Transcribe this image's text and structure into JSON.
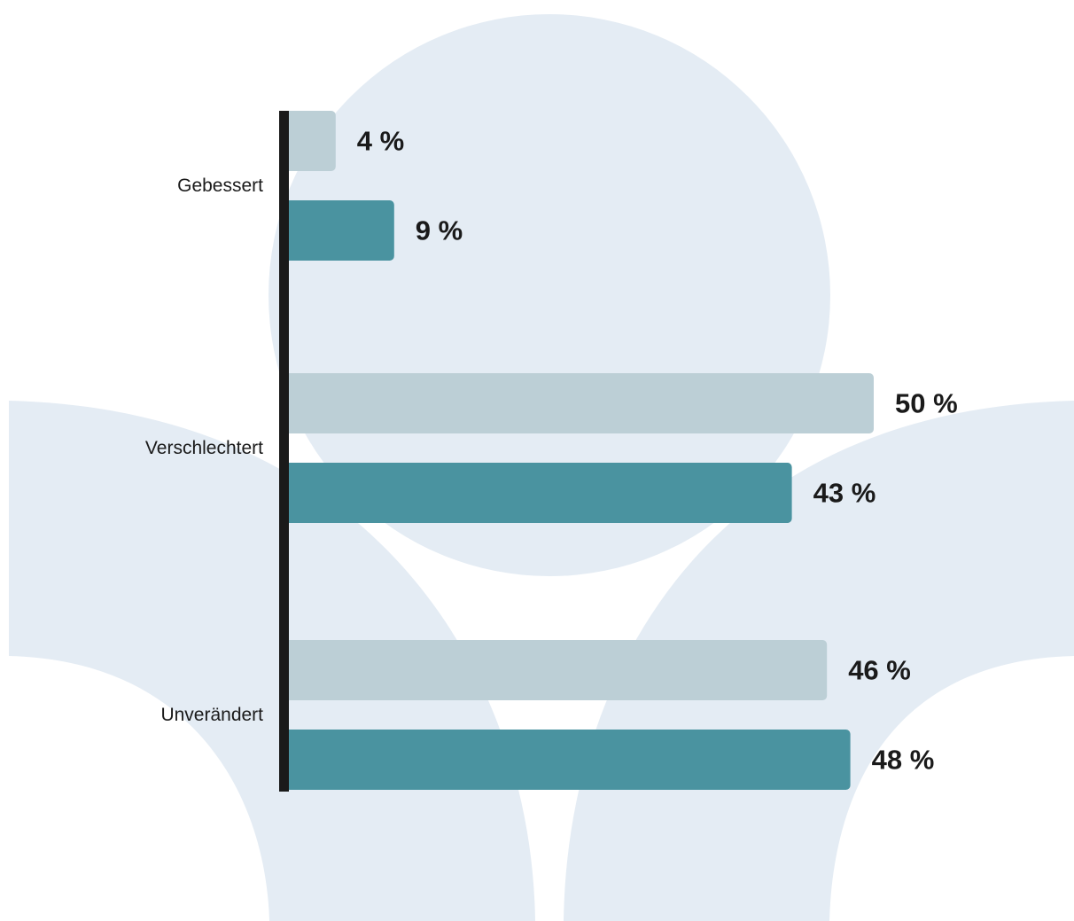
{
  "colors": {
    "background": "#ffffff",
    "decor_shape": "#e4ecf4",
    "series_light": "#bccfd6",
    "series_dark": "#4a93a0",
    "axis": "#1a1a1a",
    "text": "#1a1a1a"
  },
  "chart_data": {
    "type": "bar",
    "orientation": "horizontal",
    "categories": [
      "Gebessert",
      "Verschlechtert",
      "Unverändert"
    ],
    "series": [
      {
        "values": [
          4,
          50,
          46
        ],
        "labels": [
          "4 %",
          "50 %",
          "46 %"
        ],
        "color": "#bccfd6"
      },
      {
        "values": [
          9,
          43,
          48
        ],
        "labels": [
          "9 %",
          "43 %",
          "48 %"
        ],
        "color": "#4a93a0"
      }
    ],
    "xlim": [
      0,
      50
    ],
    "grid": false,
    "legend": "none"
  }
}
